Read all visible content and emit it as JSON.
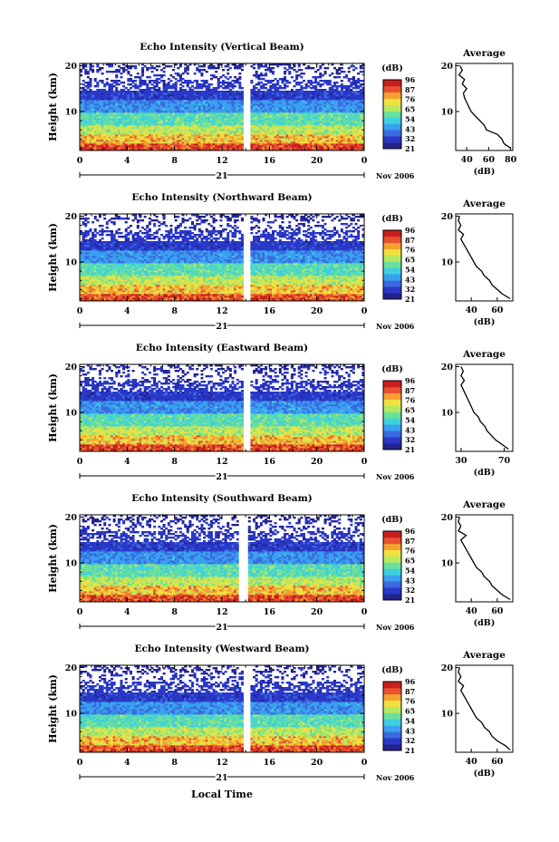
{
  "figure": {
    "xlabel": "Local Time",
    "date_day": "21",
    "date_suffix": "Nov 2006",
    "colorbar_unit": "(dB)",
    "colorbar_ticks": [
      "96",
      "87",
      "76",
      "65",
      "54",
      "43",
      "32",
      "21"
    ],
    "colormap": [
      "#23238f",
      "#2a38c8",
      "#3a6ae0",
      "#3aa0f0",
      "#3fd0e0",
      "#6ae09a",
      "#b8e860",
      "#f0e040",
      "#f5a030",
      "#e85030",
      "#c81e1e"
    ]
  },
  "chart_data": [
    {
      "type": "heatmap",
      "title": "Echo Intensity (Vertical Beam)",
      "ylabel": "Height (km)",
      "x_ticks": [
        "0",
        "4",
        "8",
        "12",
        "16",
        "20",
        "0"
      ],
      "y_ticks": [
        "10",
        "20"
      ],
      "xlim": [
        0,
        24
      ],
      "ylim": [
        1.5,
        20.5
      ],
      "gap": [
        13.9,
        14.4
      ],
      "profile": {
        "title": "Average",
        "xlabel": "(dB)",
        "xlim": [
          30,
          82
        ],
        "x_ticks": [
          "40",
          "60",
          "80"
        ],
        "x_tick_values": [
          40,
          60,
          80
        ],
        "y_ticks": [
          "10",
          "20"
        ],
        "height": [
          2,
          3,
          4,
          5,
          6,
          7,
          8,
          9,
          10,
          11,
          12,
          13,
          14,
          15,
          16,
          17,
          18,
          19,
          20
        ],
        "value": [
          80,
          74,
          72,
          68,
          58,
          56,
          52,
          48,
          44,
          42,
          40,
          38,
          37,
          40,
          36,
          38,
          33,
          36,
          34
        ]
      }
    },
    {
      "type": "heatmap",
      "title": "Echo Intensity (Northward Beam)",
      "ylabel": "Height (km)",
      "x_ticks": [
        "0",
        "4",
        "8",
        "12",
        "16",
        "20",
        "0"
      ],
      "y_ticks": [
        "10",
        "20"
      ],
      "xlim": [
        0,
        24
      ],
      "ylim": [
        1.5,
        20.5
      ],
      "gap": [
        13.9,
        14.4
      ],
      "profile": {
        "title": "Average",
        "xlabel": "(dB)",
        "xlim": [
          28,
          72
        ],
        "x_ticks": [
          "40",
          "60"
        ],
        "x_tick_values": [
          40,
          60
        ],
        "y_ticks": [
          "10",
          "20"
        ],
        "height": [
          2,
          3,
          4,
          5,
          6,
          7,
          8,
          9,
          10,
          11,
          12,
          13,
          14,
          15,
          16,
          17,
          18,
          19,
          20
        ],
        "value": [
          70,
          64,
          60,
          56,
          54,
          50,
          48,
          44,
          42,
          40,
          38,
          36,
          34,
          32,
          34,
          30,
          32,
          30,
          31
        ]
      }
    },
    {
      "type": "heatmap",
      "title": "Echo Intensity (Eastward Beam)",
      "ylabel": "Height (km)",
      "x_ticks": [
        "0",
        "4",
        "8",
        "12",
        "16",
        "20",
        "0"
      ],
      "y_ticks": [
        "10",
        "20"
      ],
      "xlim": [
        0,
        24
      ],
      "ylim": [
        1.5,
        20.5
      ],
      "gap": [
        13.9,
        14.4
      ],
      "profile": {
        "title": "Average",
        "xlabel": "(dB)",
        "xlim": [
          25,
          78
        ],
        "x_ticks": [
          "30",
          "70"
        ],
        "x_tick_values": [
          30,
          70
        ],
        "y_ticks": [
          "10",
          "20"
        ],
        "height": [
          2,
          3,
          4,
          5,
          6,
          7,
          8,
          9,
          10,
          11,
          12,
          13,
          14,
          15,
          16,
          17,
          18,
          19,
          20
        ],
        "value": [
          74,
          68,
          62,
          58,
          54,
          52,
          48,
          46,
          42,
          40,
          38,
          36,
          34,
          32,
          30,
          33,
          30,
          32,
          30
        ]
      }
    },
    {
      "type": "heatmap",
      "title": "Echo Intensity (Southward Beam)",
      "ylabel": "Height (km)",
      "x_ticks": [
        "0",
        "4",
        "8",
        "12",
        "16",
        "20",
        "0"
      ],
      "y_ticks": [
        "10",
        "20"
      ],
      "xlim": [
        0,
        24
      ],
      "ylim": [
        1.5,
        20.5
      ],
      "gap": [
        13.5,
        14.0
      ],
      "profile": {
        "title": "Average",
        "xlabel": "(dB)",
        "xlim": [
          28,
          72
        ],
        "x_ticks": [
          "40",
          "60"
        ],
        "x_tick_values": [
          40,
          60
        ],
        "y_ticks": [
          "10",
          "20"
        ],
        "height": [
          2,
          3,
          4,
          5,
          6,
          7,
          8,
          9,
          10,
          11,
          12,
          13,
          14,
          15,
          16,
          17,
          18,
          19,
          20
        ],
        "value": [
          70,
          64,
          60,
          56,
          54,
          50,
          48,
          44,
          42,
          40,
          38,
          36,
          34,
          32,
          36,
          30,
          32,
          30,
          31
        ]
      }
    },
    {
      "type": "heatmap",
      "title": "Echo Intensity (Westward Beam)",
      "ylabel": "Height (km)",
      "x_ticks": [
        "0",
        "4",
        "8",
        "12",
        "16",
        "20",
        "0"
      ],
      "y_ticks": [
        "10",
        "20"
      ],
      "xlim": [
        0,
        24
      ],
      "ylim": [
        1.5,
        20.5
      ],
      "gap": [
        13.8,
        14.3
      ],
      "profile": {
        "title": "Average",
        "xlabel": "(dB)",
        "xlim": [
          28,
          72
        ],
        "x_ticks": [
          "40",
          "60"
        ],
        "x_tick_values": [
          40,
          60
        ],
        "y_ticks": [
          "10",
          "20"
        ],
        "height": [
          2,
          3,
          4,
          5,
          6,
          7,
          8,
          9,
          10,
          11,
          12,
          13,
          14,
          15,
          16,
          17,
          18,
          19,
          20
        ],
        "value": [
          70,
          66,
          60,
          56,
          54,
          50,
          48,
          44,
          42,
          40,
          38,
          36,
          34,
          32,
          34,
          30,
          32,
          30,
          31
        ]
      }
    }
  ]
}
